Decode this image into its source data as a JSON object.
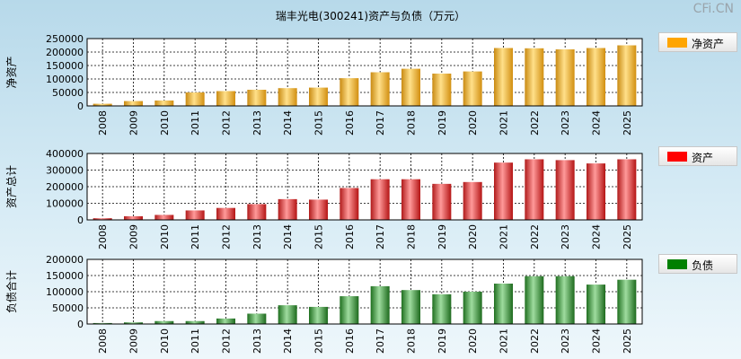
{
  "title": "瑞丰光电(300241)资产与负债（万元）",
  "watermark": "CFi.CN",
  "colors": {
    "net_assets": "#ffa500",
    "total_assets": "#ff0000",
    "liabilities": "#008000"
  },
  "chart_data": [
    {
      "type": "bar",
      "ylabel": "净资产",
      "legend": "净资产",
      "categories": [
        "2008",
        "2009",
        "2010",
        "2011",
        "2012",
        "2013",
        "2014",
        "2015",
        "2016",
        "2017",
        "2018",
        "2019",
        "2020",
        "2021",
        "2022",
        "2023",
        "2024",
        "2025"
      ],
      "values": [
        8000,
        18000,
        20000,
        50000,
        55000,
        60000,
        66000,
        68000,
        103000,
        125000,
        138000,
        120000,
        128000,
        215000,
        214000,
        210000,
        215000,
        225000
      ],
      "ylim": [
        0,
        250000
      ],
      "yticks": [
        "0",
        "50000",
        "100000",
        "150000",
        "200000",
        "250000"
      ],
      "grid": true
    },
    {
      "type": "bar",
      "ylabel": "资产总计",
      "legend": "资产",
      "categories": [
        "2008",
        "2009",
        "2010",
        "2011",
        "2012",
        "2013",
        "2014",
        "2015",
        "2016",
        "2017",
        "2018",
        "2019",
        "2020",
        "2021",
        "2022",
        "2023",
        "2024",
        "2025"
      ],
      "values": [
        10000,
        22000,
        30000,
        57000,
        72000,
        95000,
        125000,
        122000,
        192000,
        245000,
        245000,
        217000,
        228000,
        345000,
        365000,
        360000,
        340000,
        365000
      ],
      "ylim": [
        0,
        400000
      ],
      "yticks": [
        "0",
        "100000",
        "200000",
        "300000",
        "400000"
      ],
      "grid": true
    },
    {
      "type": "bar",
      "ylabel": "负债合计",
      "legend": "负债",
      "categories": [
        "2008",
        "2009",
        "2010",
        "2011",
        "2012",
        "2013",
        "2014",
        "2015",
        "2016",
        "2017",
        "2018",
        "2019",
        "2020",
        "2021",
        "2022",
        "2023",
        "2024",
        "2025"
      ],
      "values": [
        3000,
        5000,
        9000,
        9000,
        17000,
        32000,
        58000,
        53000,
        86000,
        117000,
        105000,
        92000,
        100000,
        125000,
        148000,
        148000,
        122000,
        137000
      ],
      "ylim": [
        0,
        200000
      ],
      "yticks": [
        "0",
        "50000",
        "100000",
        "150000",
        "200000"
      ],
      "grid": true
    }
  ]
}
